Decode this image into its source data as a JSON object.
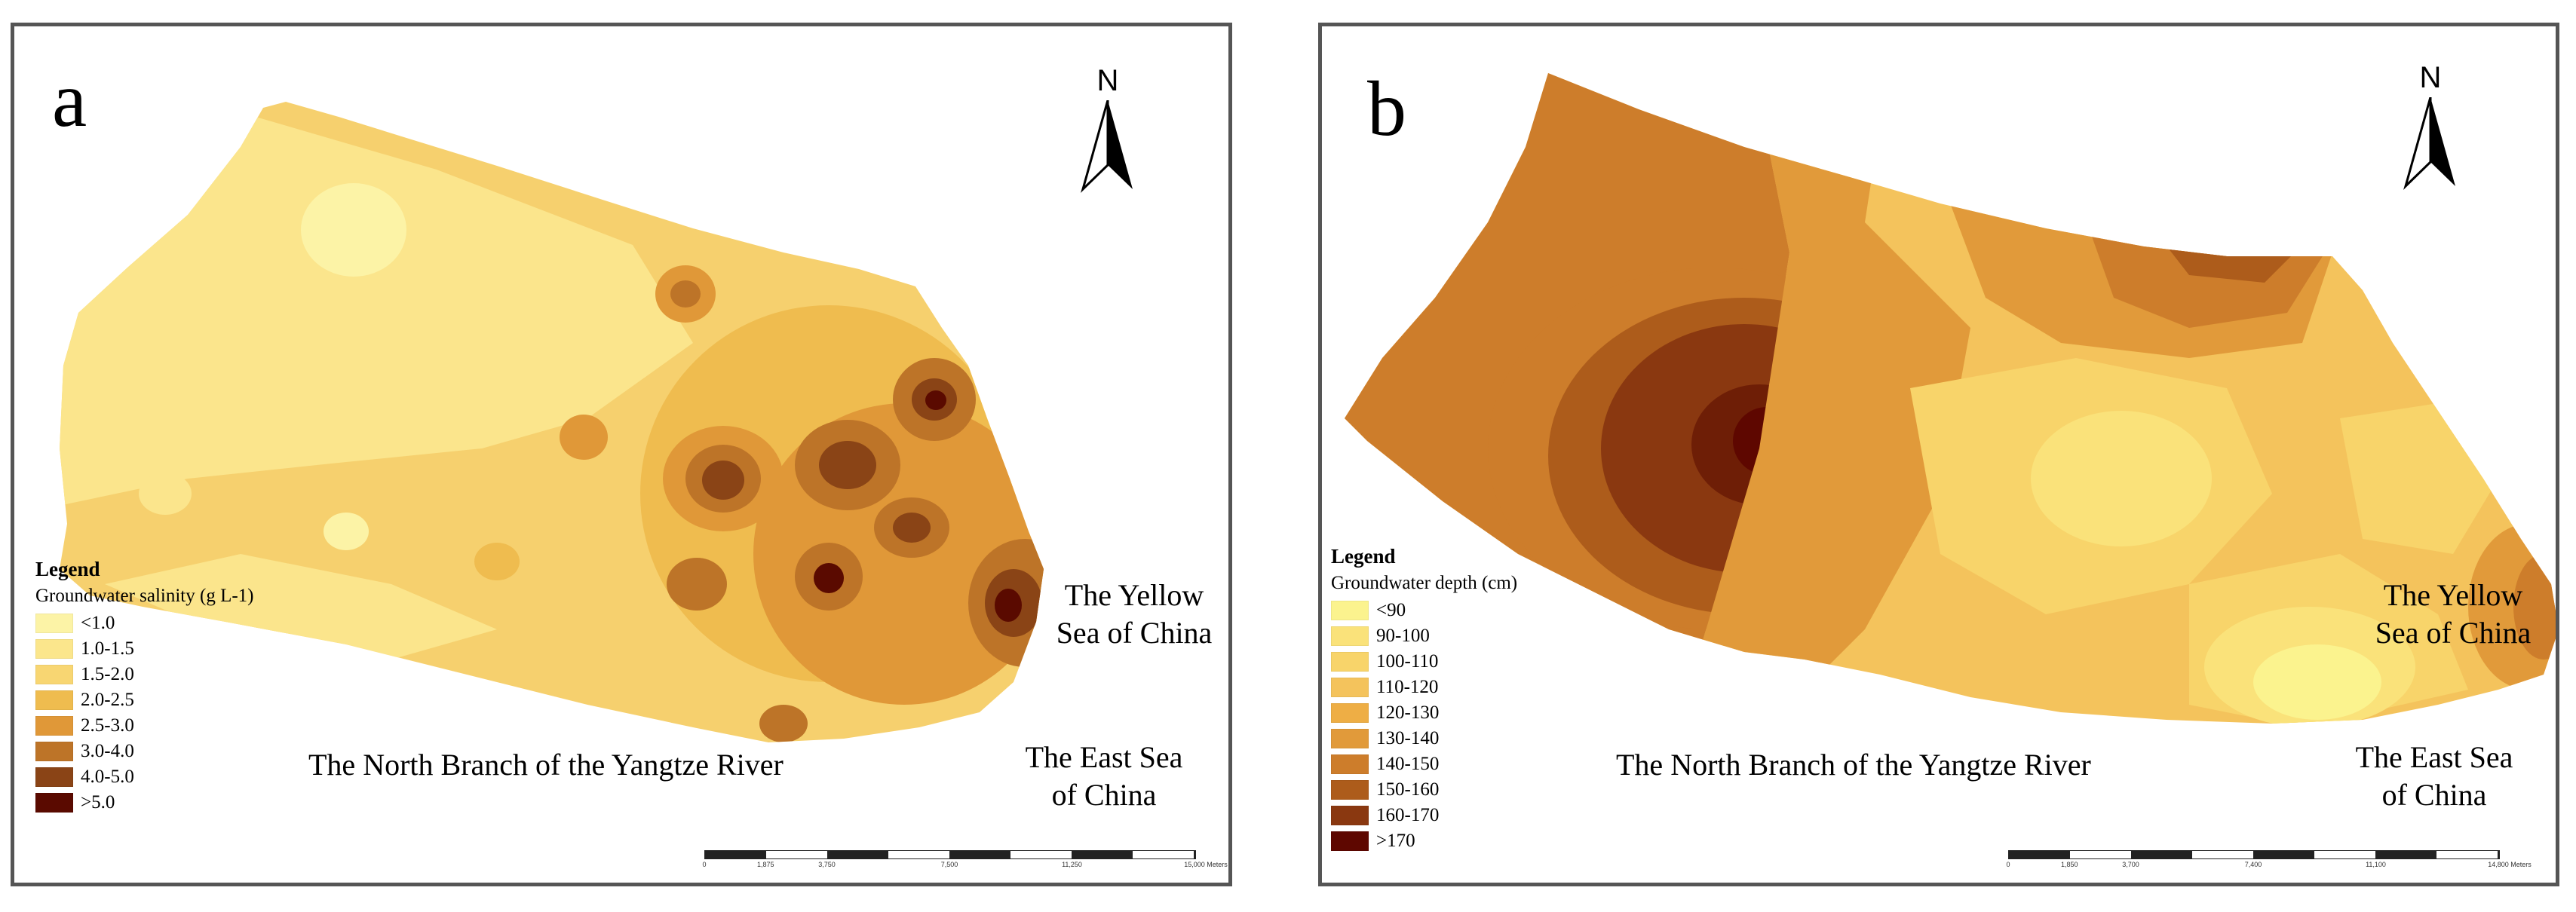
{
  "panel_a": {
    "letter": "a",
    "north_label": "N",
    "legend": {
      "title": "Legend",
      "subtitle": "Groundwater salinity (g L-1)",
      "items": [
        {
          "label": "<1.0",
          "color": "#fcf3a6"
        },
        {
          "label": "1.0-1.5",
          "color": "#fbe68c"
        },
        {
          "label": "1.5-2.0",
          "color": "#f8d672"
        },
        {
          "label": "2.0-2.5",
          "color": "#efbc4f"
        },
        {
          "label": "2.5-3.0",
          "color": "#e09838"
        },
        {
          "label": "3.0-4.0",
          "color": "#bd7428"
        },
        {
          "label": "4.0-5.0",
          "color": "#8a4416"
        },
        {
          "label": ">5.0",
          "color": "#5a0a00"
        }
      ]
    },
    "labels": {
      "yellow_sea": "The Yellow Sea of China",
      "river": "The North Branch of the Yangtze River",
      "east_sea": "The East Sea of China"
    },
    "scale_ticks": [
      "0",
      "1,875",
      "3,750",
      "7,500",
      "11,250",
      "15,000"
    ],
    "scale_unit": "Meters"
  },
  "panel_b": {
    "letter": "b",
    "north_label": "N",
    "legend": {
      "title": "Legend",
      "subtitle": "Groundwater depth (cm)",
      "items": [
        {
          "label": "<90",
          "color": "#fbf38e"
        },
        {
          "label": "90-100",
          "color": "#fae27a"
        },
        {
          "label": "100-110",
          "color": "#f8d46a"
        },
        {
          "label": "110-120",
          "color": "#f4c35c"
        },
        {
          "label": "120-130",
          "color": "#eeae45"
        },
        {
          "label": "130-140",
          "color": "#e19a3a"
        },
        {
          "label": "140-150",
          "color": "#cd7d2b"
        },
        {
          "label": "150-160",
          "color": "#ad5c1b"
        },
        {
          "label": "160-170",
          "color": "#8a3810"
        },
        {
          "label": ">170",
          "color": "#5e0700"
        }
      ]
    },
    "labels": {
      "yellow_sea": "The Yellow Sea of China",
      "river": "The North Branch of the Yangtze River",
      "east_sea": "The East Sea of China"
    },
    "scale_ticks": [
      "0",
      "1,850",
      "3,700",
      "7,400",
      "11,100",
      "14,800"
    ],
    "scale_unit": "Meters"
  }
}
